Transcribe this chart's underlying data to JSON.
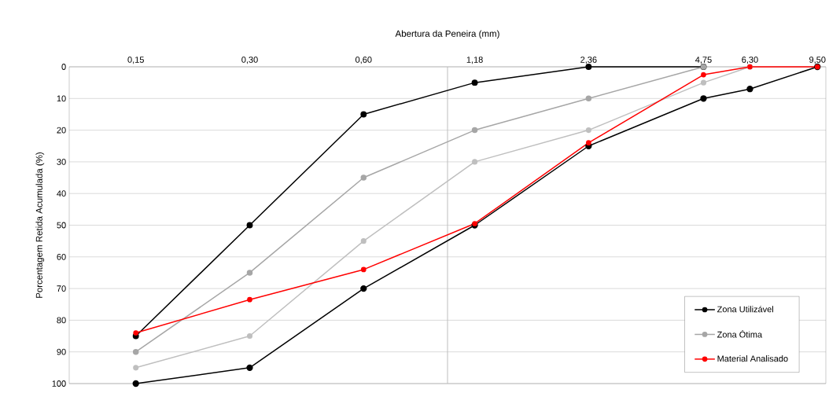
{
  "chart_data": {
    "type": "line",
    "xlabel": "Abertura da Peneira (mm)",
    "ylabel": "Porcentagem Retida Acumulada (%)",
    "log": "x",
    "xlim": [
      0.1,
      10
    ],
    "ylim": [
      100,
      0
    ],
    "xticks": [
      {
        "value": 0.15,
        "label": "0,15"
      },
      {
        "value": 0.3,
        "label": "0,30"
      },
      {
        "value": 0.6,
        "label": "0,60"
      },
      {
        "value": 1.18,
        "label": "1,18"
      },
      {
        "value": 2.36,
        "label": "2,36"
      },
      {
        "value": 4.75,
        "label": "4,75"
      },
      {
        "value": 6.3,
        "label": "6,30"
      },
      {
        "value": 9.5,
        "label": "9,50"
      }
    ],
    "yticks": [
      0,
      10,
      20,
      30,
      40,
      50,
      60,
      70,
      80,
      90,
      100
    ],
    "grid": "y",
    "legend": "bottom right",
    "marker": "circle",
    "line_style": "solid",
    "ref_lines": [
      {
        "axis": "x",
        "value": 1,
        "color": "#bfbfbf"
      }
    ],
    "series": [
      {
        "name": "Zona Utilizável",
        "color": "#000000",
        "x": [
          0.15,
          0.3,
          0.6,
          1.18,
          2.36,
          4.75,
          6.3,
          9.5
        ],
        "values": [
          100,
          95,
          70,
          50,
          25,
          10,
          7,
          0
        ]
      },
      {
        "color": "#000000",
        "x": [
          0.15,
          0.3,
          0.6,
          1.18,
          2.36,
          4.75
        ],
        "values": [
          85,
          50,
          15,
          5,
          0,
          0
        ]
      },
      {
        "name": "Zona Ótima",
        "color": "#a6a6a6",
        "x": [
          0.15,
          0.3,
          0.6,
          1.18,
          2.36,
          4.75
        ],
        "values": [
          90,
          65,
          35,
          20,
          10,
          0
        ]
      },
      {
        "color": "#bfbfbf",
        "x": [
          0.15,
          0.3,
          0.6,
          1.18,
          2.36,
          4.75,
          6.3
        ],
        "values": [
          95,
          85,
          55,
          30,
          20,
          5,
          0
        ]
      },
      {
        "name": "Material Analisado",
        "color": "#ff0000",
        "x": [
          0.15,
          0.3,
          0.6,
          1.18,
          2.36,
          4.75,
          6.3,
          9.5
        ],
        "values": [
          84,
          73.5,
          64,
          49.5,
          24,
          2.5,
          0,
          0
        ]
      }
    ]
  }
}
